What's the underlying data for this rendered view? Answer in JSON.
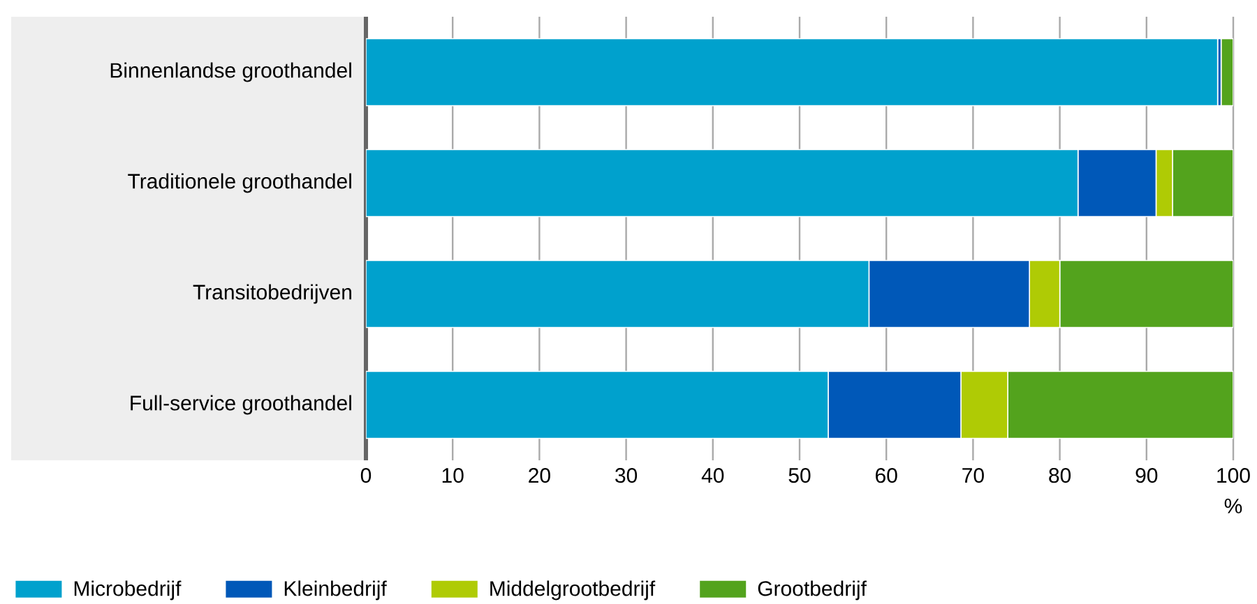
{
  "chart_data": {
    "type": "bar",
    "orientation": "horizontal",
    "stacked": true,
    "xlabel": "%",
    "categories": [
      "Binnenlandse groothandel",
      "Traditionele groothandel",
      "Transitobedrijven",
      "Full-service groothandel"
    ],
    "series": [
      {
        "name": "Microbedrijf",
        "color": "#00a1cd",
        "values": [
          98.2,
          82.1,
          58.0,
          53.3
        ]
      },
      {
        "name": "Kleinbedrijf",
        "color": "#0058b8",
        "values": [
          0.4,
          9.0,
          18.5,
          15.3
        ]
      },
      {
        "name": "Middelgrootbedrijf",
        "color": "#afcb05",
        "values": [
          null,
          1.9,
          3.5,
          5.4
        ]
      },
      {
        "name": "Grootbedrijf",
        "color": "#53a31d",
        "values": [
          1.4,
          7.0,
          20.0,
          26.0
        ]
      }
    ],
    "xlim": [
      0,
      100
    ],
    "xticks": [
      0,
      10,
      20,
      30,
      40,
      50,
      60,
      70,
      80,
      90,
      100
    ],
    "grid": "x",
    "legend": "bottom"
  }
}
